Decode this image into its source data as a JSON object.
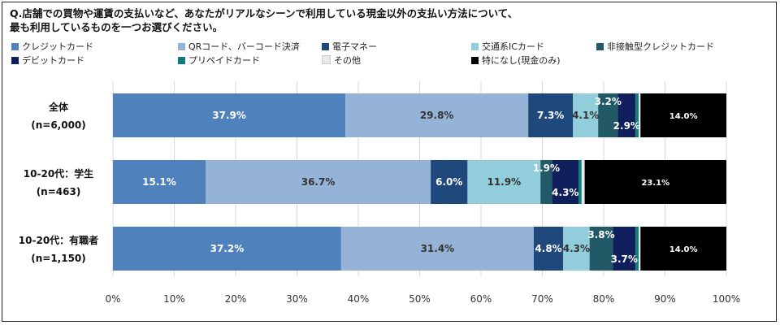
{
  "title_lines": [
    "Q.店舗での買物や運賃の支払いなど、あなたがリアルなシーンで利用している現金以外の支払い方法について、",
    "最も利用しているものを一つお選びください。"
  ],
  "chart_data": {
    "type": "bar",
    "orientation": "horizontal",
    "stacked": true,
    "normalized": true,
    "categories": [
      [
        "全体",
        "(n=6,000)"
      ],
      [
        "10-20代：学生",
        "(n=463)"
      ],
      [
        "10-20代：有職者",
        "(n=1,150)"
      ]
    ],
    "series": [
      {
        "name": "クレジットカード",
        "color": "#4F81BD",
        "label_color": "#ffffff",
        "values": [
          37.9,
          15.1,
          37.2
        ],
        "labels": [
          "37.9%",
          "15.1%",
          "37.2%"
        ]
      },
      {
        "name": "QRコード、バーコード決済",
        "color": "#95B3D7",
        "label_color": "#333333",
        "values": [
          29.8,
          36.7,
          31.4
        ],
        "labels": [
          "29.8%",
          "36.7%",
          "31.4%"
        ]
      },
      {
        "name": "電子マネー",
        "color": "#1F497D",
        "label_color": "#ffffff",
        "values": [
          7.3,
          6.0,
          4.8
        ],
        "labels": [
          "7.3%",
          "6.0%",
          "4.8%"
        ]
      },
      {
        "name": "交通系ICカード",
        "color": "#92CDDC",
        "label_color": "#333333",
        "values": [
          4.1,
          11.9,
          4.3
        ],
        "labels": [
          "4.1%",
          "11.9%",
          "4.3%"
        ]
      },
      {
        "name": "非接触型クレジットカード",
        "color": "#215967",
        "label_color": "#ffffff",
        "values": [
          3.2,
          1.9,
          3.8
        ],
        "labels": [
          "3.2%",
          "1.9%",
          "3.8%"
        ]
      },
      {
        "name": "デビットカード",
        "color": "#0F1F5C",
        "label_color": "#ffffff",
        "values": [
          2.9,
          4.3,
          3.7
        ],
        "labels": [
          "2.9%",
          "4.3%",
          "3.7%"
        ]
      },
      {
        "name": "プリペイドカード",
        "color": "#0E7C7B",
        "label_color": "#ffffff",
        "values": [
          0.5,
          0.5,
          0.5
        ],
        "labels": [
          "",
          "",
          ""
        ]
      },
      {
        "name": "その他",
        "color": "#E8E8E8",
        "label_color": "#333333",
        "values": [
          0.3,
          0.5,
          0.3
        ],
        "labels": [
          "",
          "",
          ""
        ]
      },
      {
        "name": "特になし(現金のみ)",
        "color": "#000000",
        "label_color": "#ffffff",
        "values": [
          14.0,
          23.1,
          14.0
        ],
        "labels": [
          "14.0%",
          "23.1%",
          "14.0%"
        ]
      }
    ],
    "xlim": [
      0,
      100
    ],
    "xticks": [
      "0%",
      "10%",
      "20%",
      "30%",
      "40%",
      "50%",
      "60%",
      "70%",
      "80%",
      "90%",
      "100%"
    ],
    "grid": true,
    "legend_position": "top"
  }
}
